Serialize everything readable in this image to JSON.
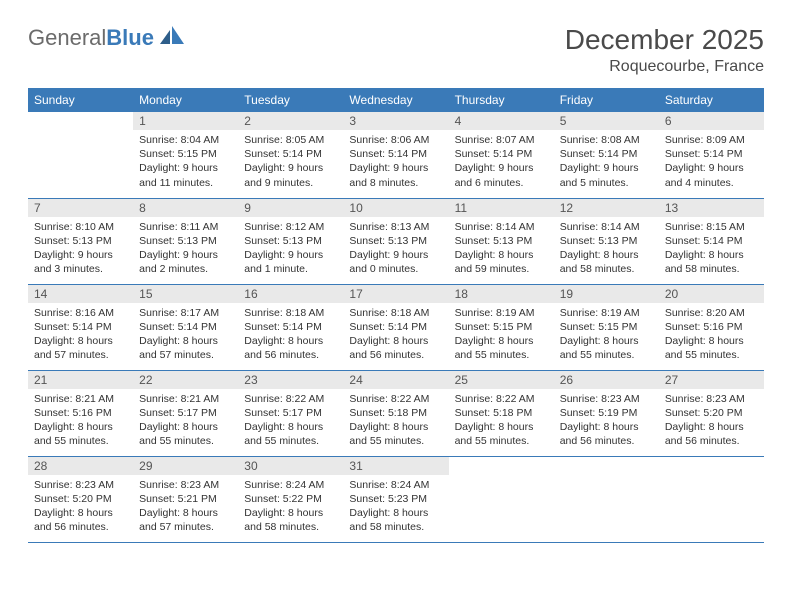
{
  "logo": {
    "part1": "General",
    "part2": "Blue"
  },
  "title": "December 2025",
  "location": "Roquecourbe, France",
  "header_color": "#3a7ab8",
  "daynum_bg": "#e9e9e9",
  "days_of_week": [
    "Sunday",
    "Monday",
    "Tuesday",
    "Wednesday",
    "Thursday",
    "Friday",
    "Saturday"
  ],
  "weeks": [
    [
      null,
      {
        "n": "1",
        "sr": "8:04 AM",
        "ss": "5:15 PM",
        "dl": "9 hours and 11 minutes."
      },
      {
        "n": "2",
        "sr": "8:05 AM",
        "ss": "5:14 PM",
        "dl": "9 hours and 9 minutes."
      },
      {
        "n": "3",
        "sr": "8:06 AM",
        "ss": "5:14 PM",
        "dl": "9 hours and 8 minutes."
      },
      {
        "n": "4",
        "sr": "8:07 AM",
        "ss": "5:14 PM",
        "dl": "9 hours and 6 minutes."
      },
      {
        "n": "5",
        "sr": "8:08 AM",
        "ss": "5:14 PM",
        "dl": "9 hours and 5 minutes."
      },
      {
        "n": "6",
        "sr": "8:09 AM",
        "ss": "5:14 PM",
        "dl": "9 hours and 4 minutes."
      }
    ],
    [
      {
        "n": "7",
        "sr": "8:10 AM",
        "ss": "5:13 PM",
        "dl": "9 hours and 3 minutes."
      },
      {
        "n": "8",
        "sr": "8:11 AM",
        "ss": "5:13 PM",
        "dl": "9 hours and 2 minutes."
      },
      {
        "n": "9",
        "sr": "8:12 AM",
        "ss": "5:13 PM",
        "dl": "9 hours and 1 minute."
      },
      {
        "n": "10",
        "sr": "8:13 AM",
        "ss": "5:13 PM",
        "dl": "9 hours and 0 minutes."
      },
      {
        "n": "11",
        "sr": "8:14 AM",
        "ss": "5:13 PM",
        "dl": "8 hours and 59 minutes."
      },
      {
        "n": "12",
        "sr": "8:14 AM",
        "ss": "5:13 PM",
        "dl": "8 hours and 58 minutes."
      },
      {
        "n": "13",
        "sr": "8:15 AM",
        "ss": "5:14 PM",
        "dl": "8 hours and 58 minutes."
      }
    ],
    [
      {
        "n": "14",
        "sr": "8:16 AM",
        "ss": "5:14 PM",
        "dl": "8 hours and 57 minutes."
      },
      {
        "n": "15",
        "sr": "8:17 AM",
        "ss": "5:14 PM",
        "dl": "8 hours and 57 minutes."
      },
      {
        "n": "16",
        "sr": "8:18 AM",
        "ss": "5:14 PM",
        "dl": "8 hours and 56 minutes."
      },
      {
        "n": "17",
        "sr": "8:18 AM",
        "ss": "5:14 PM",
        "dl": "8 hours and 56 minutes."
      },
      {
        "n": "18",
        "sr": "8:19 AM",
        "ss": "5:15 PM",
        "dl": "8 hours and 55 minutes."
      },
      {
        "n": "19",
        "sr": "8:19 AM",
        "ss": "5:15 PM",
        "dl": "8 hours and 55 minutes."
      },
      {
        "n": "20",
        "sr": "8:20 AM",
        "ss": "5:16 PM",
        "dl": "8 hours and 55 minutes."
      }
    ],
    [
      {
        "n": "21",
        "sr": "8:21 AM",
        "ss": "5:16 PM",
        "dl": "8 hours and 55 minutes."
      },
      {
        "n": "22",
        "sr": "8:21 AM",
        "ss": "5:17 PM",
        "dl": "8 hours and 55 minutes."
      },
      {
        "n": "23",
        "sr": "8:22 AM",
        "ss": "5:17 PM",
        "dl": "8 hours and 55 minutes."
      },
      {
        "n": "24",
        "sr": "8:22 AM",
        "ss": "5:18 PM",
        "dl": "8 hours and 55 minutes."
      },
      {
        "n": "25",
        "sr": "8:22 AM",
        "ss": "5:18 PM",
        "dl": "8 hours and 55 minutes."
      },
      {
        "n": "26",
        "sr": "8:23 AM",
        "ss": "5:19 PM",
        "dl": "8 hours and 56 minutes."
      },
      {
        "n": "27",
        "sr": "8:23 AM",
        "ss": "5:20 PM",
        "dl": "8 hours and 56 minutes."
      }
    ],
    [
      {
        "n": "28",
        "sr": "8:23 AM",
        "ss": "5:20 PM",
        "dl": "8 hours and 56 minutes."
      },
      {
        "n": "29",
        "sr": "8:23 AM",
        "ss": "5:21 PM",
        "dl": "8 hours and 57 minutes."
      },
      {
        "n": "30",
        "sr": "8:24 AM",
        "ss": "5:22 PM",
        "dl": "8 hours and 58 minutes."
      },
      {
        "n": "31",
        "sr": "8:24 AM",
        "ss": "5:23 PM",
        "dl": "8 hours and 58 minutes."
      },
      null,
      null,
      null
    ]
  ],
  "labels": {
    "sunrise": "Sunrise:",
    "sunset": "Sunset:",
    "daylight": "Daylight:"
  }
}
